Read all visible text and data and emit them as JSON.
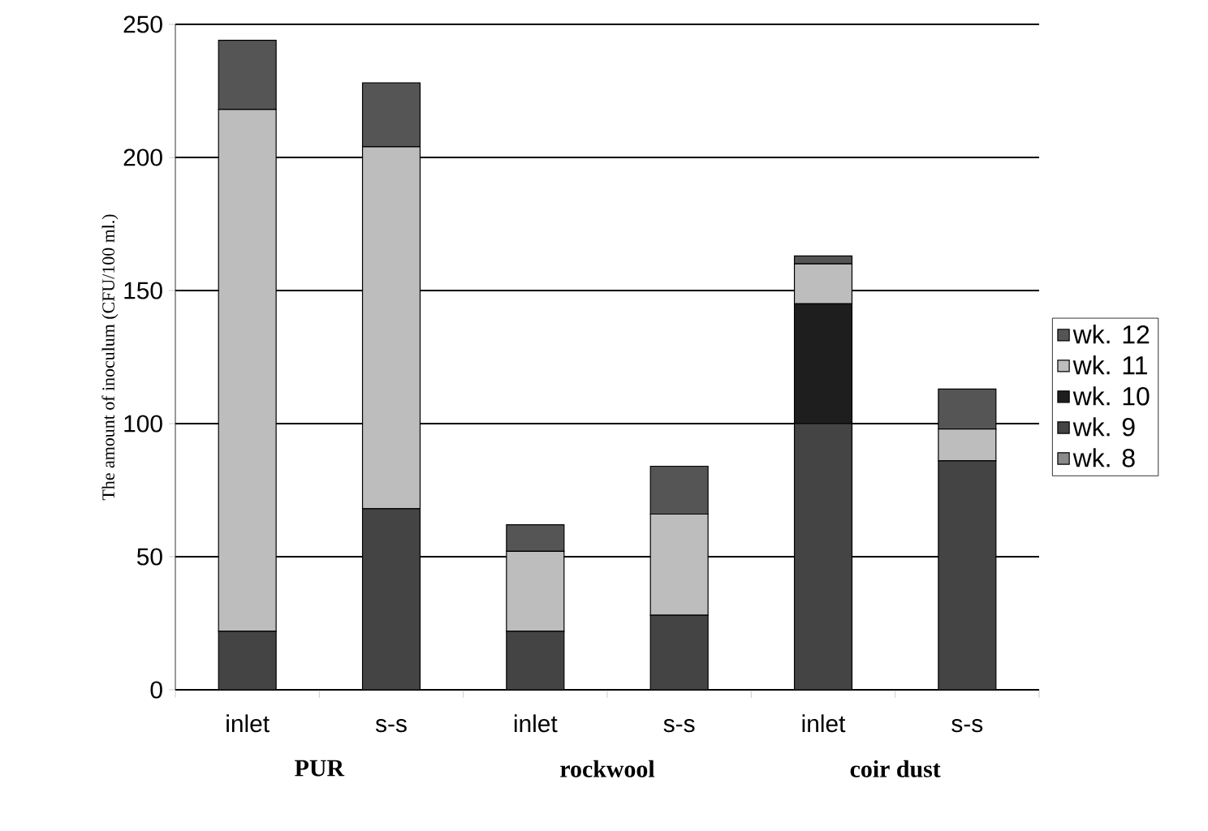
{
  "chart_data": {
    "type": "bar",
    "stacked": true,
    "ylabel": "The amount of inoculum (CFU/100 ml.)",
    "categories": [
      "inlet",
      "s-s",
      "inlet",
      "s-s",
      "inlet",
      "s-s"
    ],
    "series": [
      {
        "name": "wk. 8",
        "color": "#8a8a8a",
        "values": [
          0,
          0,
          0,
          0,
          0,
          0
        ]
      },
      {
        "name": "wk.  9",
        "color": "#444444",
        "values": [
          22,
          68,
          22,
          28,
          100,
          86
        ]
      },
      {
        "name": "wk. 10",
        "color": "#1e1e1e",
        "values": [
          0,
          0,
          0,
          0,
          45,
          0
        ]
      },
      {
        "name": "wk. 11",
        "color": "#bdbdbd",
        "values": [
          196,
          136,
          30,
          38,
          15,
          12
        ]
      },
      {
        "name": "wk. 12",
        "color": "#555555",
        "values": [
          26,
          24,
          10,
          18,
          3,
          15
        ]
      }
    ],
    "ylim": [
      0,
      250
    ],
    "yticks": [
      0,
      50,
      100,
      150,
      200,
      250
    ],
    "grid": "y",
    "legend": "right",
    "annotations": [
      "PUR",
      "rockwool",
      "coir dust"
    ]
  }
}
